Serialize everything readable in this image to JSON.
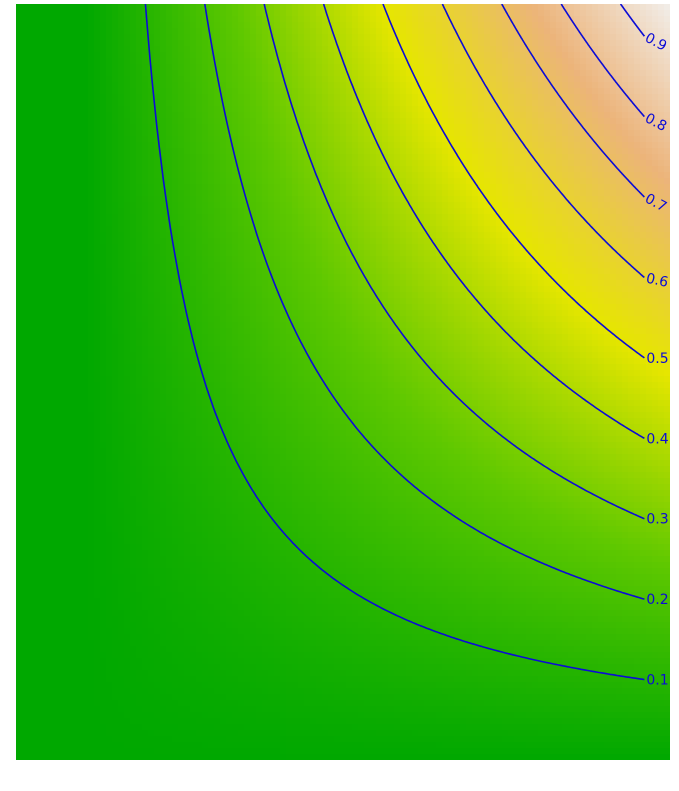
{
  "chart_data": {
    "type": "heatmap",
    "description_function": "z = x * y",
    "xlim": [
      0,
      1
    ],
    "ylim": [
      0,
      1
    ],
    "colormap": [
      "#00a800",
      "#5ec800",
      "#e6e600",
      "#ecb47a",
      "#f2f2f2"
    ],
    "contour_color": "#0b0bd6",
    "contour_levels": [
      0.1,
      0.2,
      0.3,
      0.4,
      0.5,
      0.6,
      0.7,
      0.8,
      0.9
    ],
    "contour_labels": [
      "0.1",
      "0.2",
      "0.3",
      "0.4",
      "0.5",
      "0.6",
      "0.7",
      "0.8",
      "0.9"
    ],
    "grid": false,
    "legend": "none"
  }
}
